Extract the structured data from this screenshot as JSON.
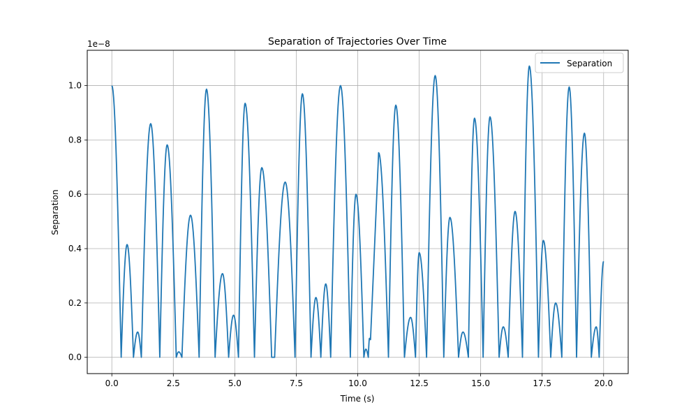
{
  "chart_data": {
    "type": "line",
    "title": "Separation of Trajectories Over Time",
    "xlabel": "Time (s)",
    "ylabel": "Separation",
    "y_offset_label": "1e−8",
    "xlim": [
      -1.0,
      21.0
    ],
    "ylim": [
      -0.06,
      1.13
    ],
    "x_ticks": [
      0.0,
      2.5,
      5.0,
      7.5,
      10.0,
      12.5,
      15.0,
      17.5,
      20.0
    ],
    "x_tick_labels": [
      "0.0",
      "2.5",
      "5.0",
      "7.5",
      "10.0",
      "12.5",
      "15.0",
      "17.5",
      "20.0"
    ],
    "y_ticks": [
      0.0,
      0.2,
      0.4,
      0.6,
      0.8,
      1.0
    ],
    "y_tick_labels": [
      "0.0",
      "0.2",
      "0.4",
      "0.6",
      "0.8",
      "1.0"
    ],
    "grid": true,
    "legend_position": "upper right",
    "series": [
      {
        "name": "Separation",
        "color": "#1f77b4",
        "x": [
          0.0,
          0.38,
          0.62,
          0.88,
          1.05,
          1.2,
          1.58,
          1.95,
          2.25,
          2.62,
          2.72,
          2.85,
          3.2,
          3.55,
          3.85,
          4.2,
          4.5,
          4.75,
          4.95,
          5.15,
          5.42,
          5.8,
          6.1,
          6.5,
          6.62,
          7.05,
          7.45,
          7.75,
          8.1,
          8.3,
          8.5,
          8.7,
          8.9,
          9.3,
          9.7,
          9.93,
          10.25,
          10.33,
          10.43,
          10.48,
          10.52,
          10.85,
          11.25,
          11.55,
          11.9,
          12.15,
          12.35,
          12.5,
          12.8,
          13.15,
          13.5,
          13.75,
          14.1,
          14.28,
          14.5,
          14.75,
          15.1,
          15.38,
          15.75,
          15.92,
          16.12,
          16.4,
          16.7,
          16.98,
          17.35,
          17.55,
          17.85,
          18.05,
          18.3,
          18.6,
          18.9,
          19.22,
          19.5,
          19.7,
          19.82,
          20.0
        ],
        "y": [
          1.0,
          0.0,
          0.415,
          0.0,
          0.093,
          0.0,
          0.86,
          0.0,
          0.782,
          0.0,
          0.02,
          0.0,
          0.523,
          0.0,
          0.987,
          0.0,
          0.308,
          0.0,
          0.155,
          0.0,
          0.935,
          0.0,
          0.698,
          0.0,
          0.0,
          0.645,
          0.0,
          0.97,
          0.0,
          0.22,
          0.0,
          0.27,
          0.0,
          1.0,
          0.0,
          0.6,
          0.0,
          0.03,
          0.0,
          0.07,
          0.065,
          0.753,
          0.0,
          0.928,
          0.0,
          0.147,
          0.0,
          0.385,
          0.0,
          1.037,
          0.0,
          0.515,
          0.0,
          0.093,
          0.0,
          0.88,
          0.0,
          0.885,
          0.0,
          0.112,
          0.0,
          0.537,
          0.0,
          1.072,
          0.0,
          0.43,
          0.0,
          0.2,
          0.0,
          0.995,
          0.0,
          0.825,
          0.0,
          0.112,
          0.0,
          0.353
        ]
      }
    ]
  }
}
